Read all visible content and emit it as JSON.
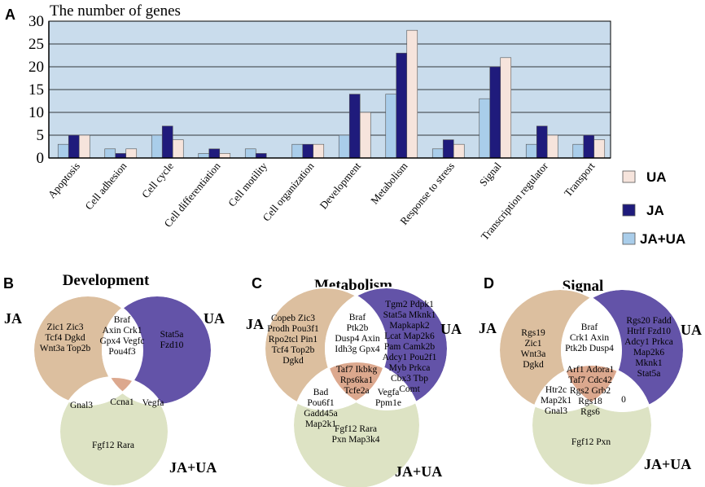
{
  "colors": {
    "plot_bg": "#c9dcec",
    "ja_ua": "#a9cdea",
    "ja": "#1f1b7c",
    "ua": "#f6e4dc",
    "venn_ja": "#dcbf9f",
    "venn_ua": "#6353a8",
    "venn_jaua": "#dde3c4",
    "venn_triple": "#dca88e"
  },
  "panels": {
    "a": "A",
    "b": "B",
    "c": "C",
    "d": "D"
  },
  "chart_data": {
    "type": "bar",
    "title": "The number of genes",
    "ylim": [
      0,
      30
    ],
    "yticks": [
      0,
      5,
      10,
      15,
      20,
      25,
      30
    ],
    "grid": true,
    "legend_position": "right",
    "categories": [
      "Apoptosis",
      "Cell adhesion",
      "Cell cycle",
      "Cell differentiation",
      "Cell motility",
      "Cell organization",
      "Development",
      "Metabolism",
      "Response to stress",
      "Signal",
      "Transcription regulator",
      "Transport"
    ],
    "series": [
      {
        "name": "JA+UA",
        "color_key": "ja_ua",
        "values": [
          3,
          2,
          5,
          1,
          2,
          3,
          5,
          14,
          2,
          13,
          3,
          3
        ]
      },
      {
        "name": "JA",
        "color_key": "ja",
        "values": [
          5,
          1,
          7,
          2,
          1,
          3,
          14,
          23,
          4,
          20,
          7,
          5
        ]
      },
      {
        "name": "UA",
        "color_key": "ua",
        "values": [
          5,
          2,
          4,
          1,
          0,
          3,
          10,
          28,
          3,
          22,
          5,
          4
        ]
      }
    ],
    "legend_order": [
      "UA",
      "JA",
      "JA+UA"
    ]
  },
  "venns": [
    {
      "title": "Development",
      "labels": {
        "ja": "JA",
        "ua": "UA",
        "jaua": "JA+UA"
      },
      "regions": {
        "ja_only": [
          "Zic1  Zic3",
          "Tcf4   Dgkd",
          "Wnt3a  Top2b"
        ],
        "ja_ua": [
          "Braf",
          "Axin  Crk1",
          "Gpx4  Vegfc",
          "Pou4f3"
        ],
        "ua_only": [
          "Stat5a",
          "Fzd10"
        ],
        "triple": [
          "Ccna1"
        ],
        "ja_jaua": [
          "Gnal3"
        ],
        "ua_jaua": [
          "Vegfa"
        ],
        "jaua_only": [
          "Fgf12   Rara"
        ]
      }
    },
    {
      "title": "Metabolism",
      "labels": {
        "ja": "JA",
        "ua": "UA",
        "jaua": "JA+UA"
      },
      "regions": {
        "ja_only": [
          "Copeb  Zic3",
          "Prodh  Pou3f1",
          "Rpo2tcl  Pin1",
          "Tcf4  Top2b",
          "Dgkd"
        ],
        "ja_ua": [
          "Braf",
          "Ptk2b",
          "Dusp4  Axin",
          "Idh3g  Gpx4"
        ],
        "ua_only": [
          "Tgm2  Pdpk1",
          "Stat5a  Mknk1",
          "Mapkapk2",
          "Lcat  Map2k6",
          "Pam  Camk2b",
          "Adcy1  Pou2f1",
          "Myb  Prkca",
          "Cbx3  Tbp",
          "Comt"
        ],
        "triple": [
          "Taf7  Ikbkg",
          "Rps6ka1",
          "Tcfe2a"
        ],
        "ja_jaua": [
          "Bad",
          "Pou6f1",
          "Gadd45a",
          "Map2k1"
        ],
        "ua_jaua": [
          "Vegfa",
          "Ppm1e"
        ],
        "jaua_only": [
          "Fgf12    Rara",
          "Pxn  Map3k4"
        ]
      }
    },
    {
      "title": "Signal",
      "labels": {
        "ja": "JA",
        "ua": "UA",
        "jaua": "JA+UA"
      },
      "regions": {
        "ja_only": [
          "Rgs19",
          "Zic1",
          "Wnt3a",
          "Dgkd"
        ],
        "ja_ua": [
          "Braf",
          "Crk1  Axin",
          "Ptk2b  Dusp4"
        ],
        "ua_only": [
          "Rgs20  Fadd",
          "Htrlf  Fzd10",
          "Adcy1  Prkca",
          "Map2k6",
          "Mknk1",
          "Stat5a"
        ],
        "triple": [
          "Arf1  Adora1",
          "Taf7  Cdc42",
          "Rgs2  Grb2",
          "Rgs18",
          "Rgs6"
        ],
        "ja_jaua": [
          "Htr2c",
          "Map2k1",
          "Gnal3"
        ],
        "ua_jaua": [
          "0"
        ],
        "jaua_only": [
          "Fgf12   Pxn"
        ]
      }
    }
  ]
}
